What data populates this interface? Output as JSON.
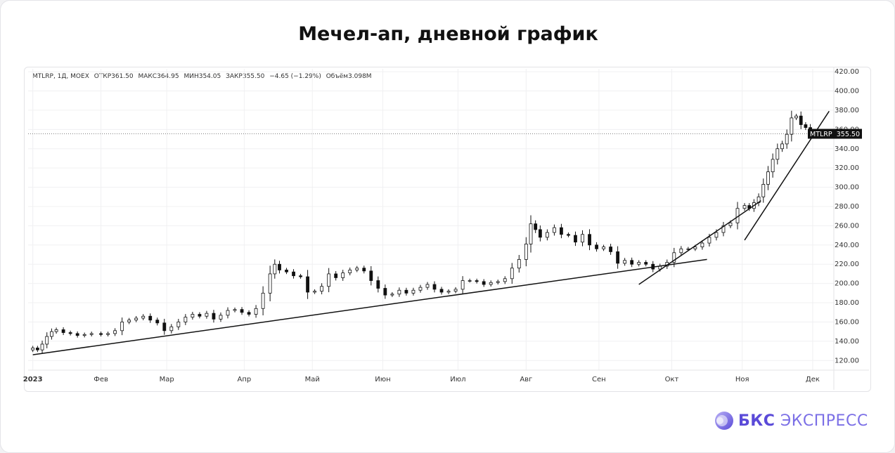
{
  "title": "Мечел-ап, дневной график",
  "legend": {
    "symbol": "MTLRP, 1Д, MOEX",
    "open": "ОТКР361.50",
    "high": "МАКС364.95",
    "low": "МИН354.05",
    "close": "ЗАКР355.50",
    "change": "−4.65 (−1.29%)",
    "volume": "Объём3.098M"
  },
  "price_tag": {
    "symbol": "MTLRP",
    "value": "355.50"
  },
  "brand": {
    "strong": "БКС",
    "light": "ЭКСПРЕСС"
  },
  "colors": {
    "up": "#ffffff",
    "down": "#111111",
    "line": "#111111",
    "accent": "#5a4ad8"
  },
  "chart_data": {
    "type": "candlestick",
    "x_range": [
      "2023-01-01",
      "2023-12-10"
    ],
    "ylim": [
      110,
      423
    ],
    "y_ticks": [
      120,
      140,
      160,
      180,
      200,
      220,
      240,
      260,
      280,
      300,
      320,
      340,
      360,
      380,
      400,
      420
    ],
    "y_tick_labels": [
      "120.00",
      "140.00",
      "160.00",
      "180.00",
      "200.00",
      "220.00",
      "240.00",
      "260.00",
      "280.00",
      "300.00",
      "320.00",
      "340.00",
      "360.00",
      "380.00",
      "400.00",
      "420.00"
    ],
    "x_ticks": [
      {
        "label": "2023",
        "date": "2023-01-03",
        "bold": true
      },
      {
        "label": "Фев",
        "date": "2023-02-01"
      },
      {
        "label": "Мар",
        "date": "2023-03-01"
      },
      {
        "label": "Апр",
        "date": "2023-04-03"
      },
      {
        "label": "Май",
        "date": "2023-05-02"
      },
      {
        "label": "Июн",
        "date": "2023-06-01"
      },
      {
        "label": "Июл",
        "date": "2023-07-03"
      },
      {
        "label": "Авг",
        "date": "2023-08-01"
      },
      {
        "label": "Сен",
        "date": "2023-09-01"
      },
      {
        "label": "Окт",
        "date": "2023-10-02"
      },
      {
        "label": "Ноя",
        "date": "2023-11-01"
      },
      {
        "label": "Дек",
        "date": "2023-12-01"
      }
    ],
    "last_price": 355.5,
    "close_series": [
      [
        "2023-01-03",
        133
      ],
      [
        "2023-01-05",
        131
      ],
      [
        "2023-01-07",
        137
      ],
      [
        "2023-01-09",
        145
      ],
      [
        "2023-01-11",
        150
      ],
      [
        "2023-01-13",
        152
      ],
      [
        "2023-01-16",
        149
      ],
      [
        "2023-01-19",
        148
      ],
      [
        "2023-01-22",
        146
      ],
      [
        "2023-01-25",
        147
      ],
      [
        "2023-01-28",
        148
      ],
      [
        "2023-02-01",
        147
      ],
      [
        "2023-02-04",
        148
      ],
      [
        "2023-02-07",
        151
      ],
      [
        "2023-02-10",
        160
      ],
      [
        "2023-02-13",
        162
      ],
      [
        "2023-02-16",
        164
      ],
      [
        "2023-02-19",
        166
      ],
      [
        "2023-02-22",
        162
      ],
      [
        "2023-02-25",
        159
      ],
      [
        "2023-02-28",
        151
      ],
      [
        "2023-03-03",
        155
      ],
      [
        "2023-03-06",
        160
      ],
      [
        "2023-03-09",
        165
      ],
      [
        "2023-03-12",
        168
      ],
      [
        "2023-03-15",
        166
      ],
      [
        "2023-03-18",
        169
      ],
      [
        "2023-03-21",
        163
      ],
      [
        "2023-03-24",
        167
      ],
      [
        "2023-03-27",
        172
      ],
      [
        "2023-03-30",
        173
      ],
      [
        "2023-04-02",
        170
      ],
      [
        "2023-04-05",
        168
      ],
      [
        "2023-04-08",
        174
      ],
      [
        "2023-04-11",
        190
      ],
      [
        "2023-04-14",
        210
      ],
      [
        "2023-04-16",
        220
      ],
      [
        "2023-04-18",
        214
      ],
      [
        "2023-04-21",
        212
      ],
      [
        "2023-04-24",
        208
      ],
      [
        "2023-04-27",
        207
      ],
      [
        "2023-04-30",
        191
      ],
      [
        "2023-05-03",
        192
      ],
      [
        "2023-05-06",
        197
      ],
      [
        "2023-05-09",
        210
      ],
      [
        "2023-05-12",
        206
      ],
      [
        "2023-05-15",
        211
      ],
      [
        "2023-05-18",
        214
      ],
      [
        "2023-05-21",
        216
      ],
      [
        "2023-05-24",
        213
      ],
      [
        "2023-05-27",
        203
      ],
      [
        "2023-05-30",
        195
      ],
      [
        "2023-06-02",
        188
      ],
      [
        "2023-06-05",
        189
      ],
      [
        "2023-06-08",
        193
      ],
      [
        "2023-06-11",
        190
      ],
      [
        "2023-06-14",
        193
      ],
      [
        "2023-06-17",
        196
      ],
      [
        "2023-06-20",
        199
      ],
      [
        "2023-06-23",
        194
      ],
      [
        "2023-06-26",
        191
      ],
      [
        "2023-06-29",
        192
      ],
      [
        "2023-07-02",
        194
      ],
      [
        "2023-07-05",
        203
      ],
      [
        "2023-07-08",
        203
      ],
      [
        "2023-07-11",
        202
      ],
      [
        "2023-07-14",
        199
      ],
      [
        "2023-07-17",
        201
      ],
      [
        "2023-07-20",
        202
      ],
      [
        "2023-07-23",
        205
      ],
      [
        "2023-07-26",
        216
      ],
      [
        "2023-07-29",
        225
      ],
      [
        "2023-08-01",
        241
      ],
      [
        "2023-08-03",
        262
      ],
      [
        "2023-08-05",
        256
      ],
      [
        "2023-08-07",
        248
      ],
      [
        "2023-08-10",
        253
      ],
      [
        "2023-08-13",
        258
      ],
      [
        "2023-08-16",
        251
      ],
      [
        "2023-08-19",
        250
      ],
      [
        "2023-08-22",
        243
      ],
      [
        "2023-08-25",
        251
      ],
      [
        "2023-08-28",
        240
      ],
      [
        "2023-08-31",
        236
      ],
      [
        "2023-09-03",
        238
      ],
      [
        "2023-09-06",
        233
      ],
      [
        "2023-09-09",
        221
      ],
      [
        "2023-09-12",
        224
      ],
      [
        "2023-09-15",
        220
      ],
      [
        "2023-09-18",
        222
      ],
      [
        "2023-09-21",
        220
      ],
      [
        "2023-09-24",
        215
      ],
      [
        "2023-09-27",
        218
      ],
      [
        "2023-09-30",
        222
      ],
      [
        "2023-10-03",
        232
      ],
      [
        "2023-10-06",
        236
      ],
      [
        "2023-10-09",
        236
      ],
      [
        "2023-10-12",
        238
      ],
      [
        "2023-10-15",
        242
      ],
      [
        "2023-10-18",
        248
      ],
      [
        "2023-10-21",
        253
      ],
      [
        "2023-10-24",
        260
      ],
      [
        "2023-10-27",
        263
      ],
      [
        "2023-10-30",
        278
      ],
      [
        "2023-11-02",
        281
      ],
      [
        "2023-11-04",
        278
      ],
      [
        "2023-11-06",
        284
      ],
      [
        "2023-11-08",
        290
      ],
      [
        "2023-11-10",
        303
      ],
      [
        "2023-11-12",
        316
      ],
      [
        "2023-11-14",
        329
      ],
      [
        "2023-11-16",
        340
      ],
      [
        "2023-11-18",
        345
      ],
      [
        "2023-11-20",
        355
      ],
      [
        "2023-11-22",
        372
      ],
      [
        "2023-11-24",
        374
      ],
      [
        "2023-11-26",
        365
      ],
      [
        "2023-11-28",
        362
      ],
      [
        "2023-11-30",
        356
      ],
      [
        "2023-12-02",
        355.5
      ]
    ],
    "trendlines": [
      {
        "from": [
          "2023-01-03",
          126
        ],
        "to": [
          "2023-10-17",
          225
        ]
      },
      {
        "from": [
          "2023-09-18",
          199
        ],
        "to": [
          "2023-11-09",
          286
        ]
      },
      {
        "from": [
          "2023-11-02",
          245
        ],
        "to": [
          "2023-12-08",
          379
        ]
      }
    ]
  }
}
